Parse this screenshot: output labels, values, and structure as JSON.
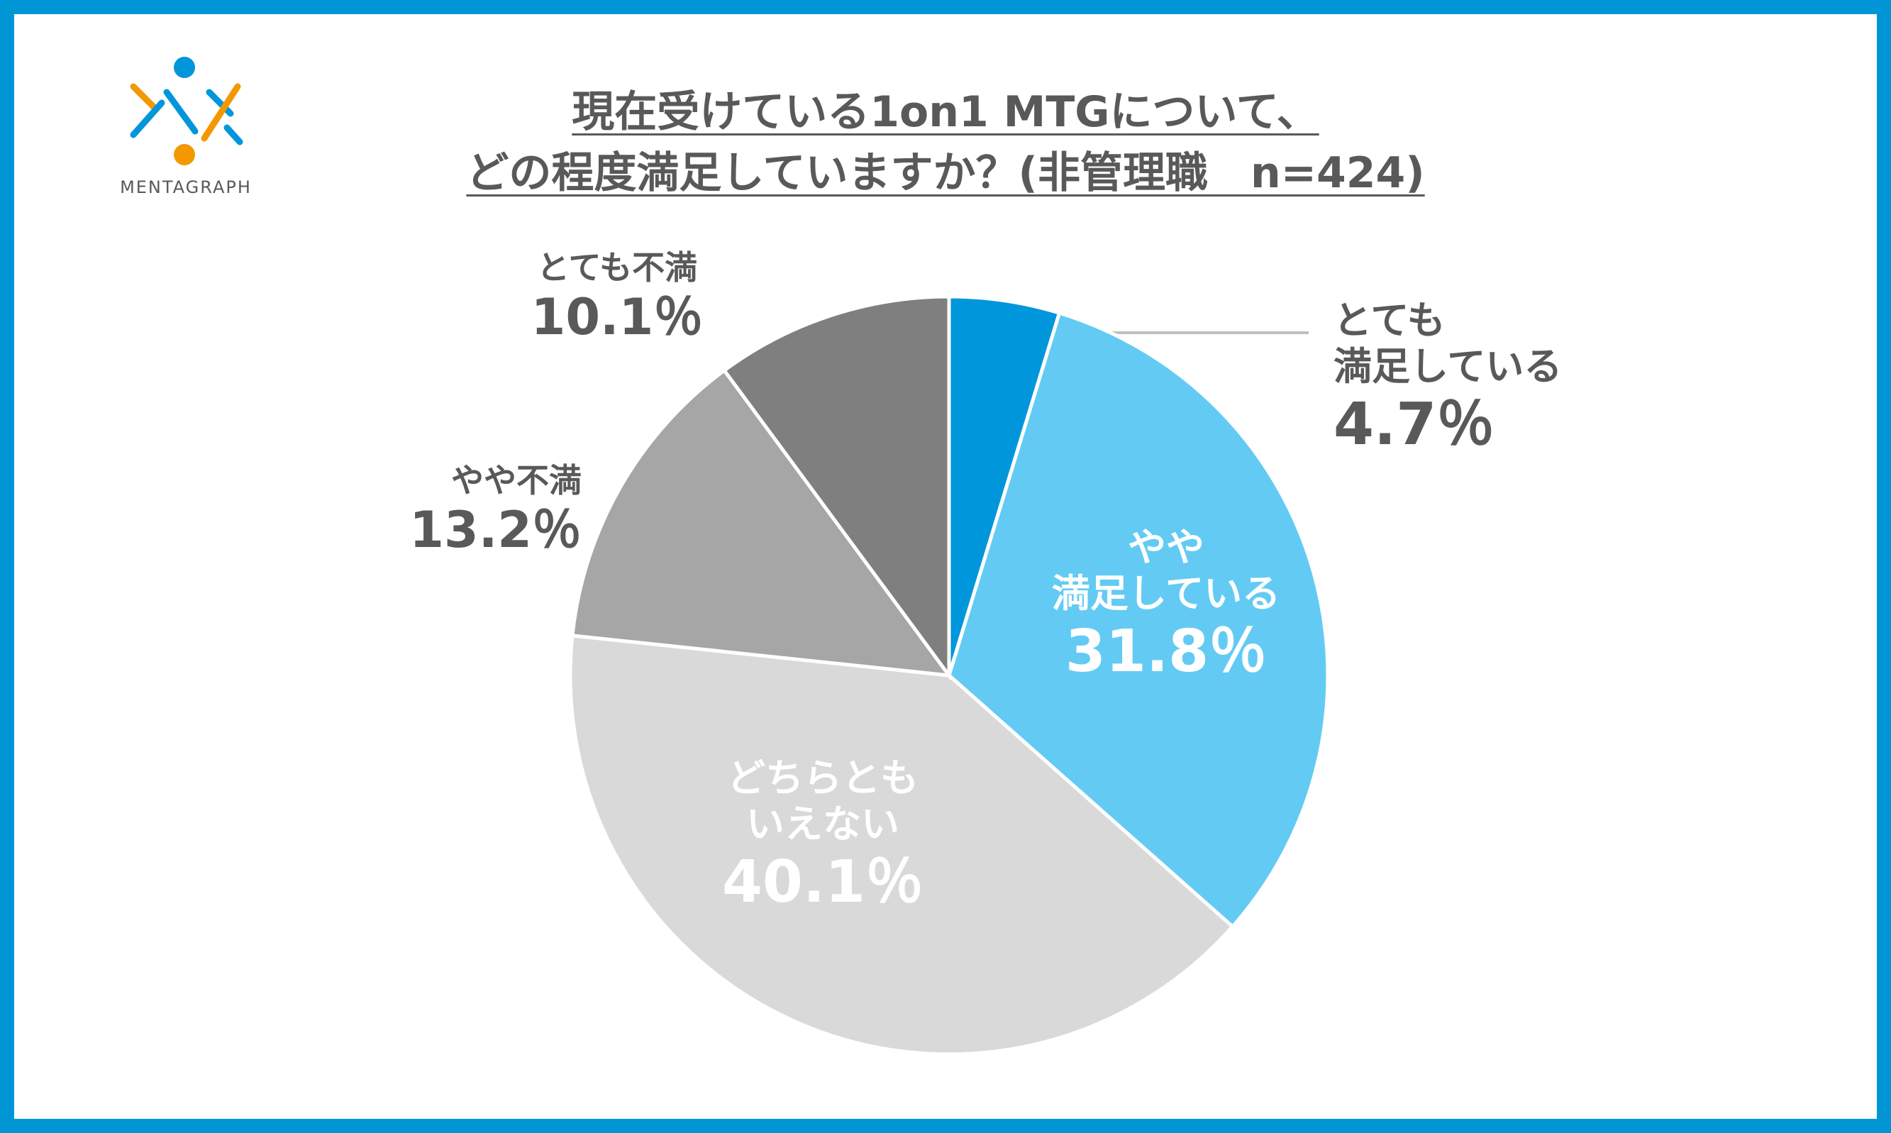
{
  "logo": {
    "text": "MENTAGRAPH"
  },
  "chart_data": {
    "type": "pie",
    "title": "現在受けている1on1 MTGについて、\nどの程度満足していますか？(非管理職　n=424)",
    "categories": [
      "とても\n満足している",
      "やや\n満足している",
      "どちらとも\nいえない",
      "やや不満",
      "とても不満"
    ],
    "values": [
      4.7,
      31.8,
      40.1,
      13.2,
      10.1
    ],
    "value_labels": [
      "4.7％",
      "31.8％",
      "40.1％",
      "13.2％",
      "10.1％"
    ],
    "colors": [
      "#0096db",
      "#63cbf3",
      "#d9d9d9",
      "#a6a6a6",
      "#7f7f7f"
    ]
  }
}
